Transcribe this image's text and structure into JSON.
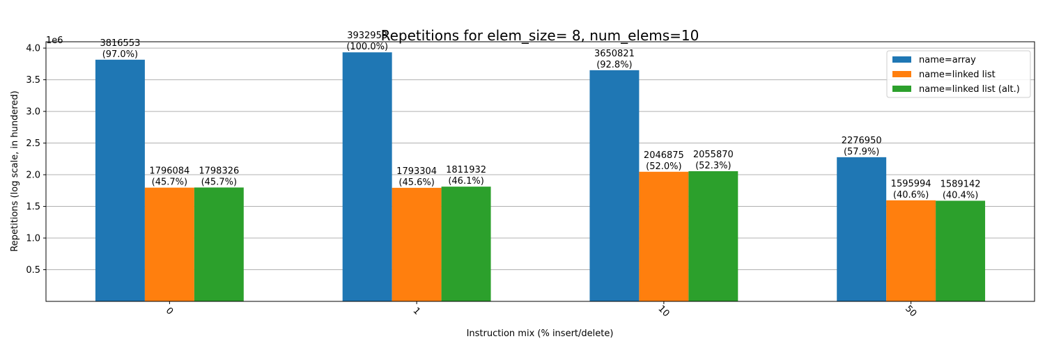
{
  "chart_data": {
    "type": "bar",
    "title": "Repetitions for elem_size= 8, num_elems=10",
    "xlabel": "Instruction mix (% insert/delete)",
    "ylabel": "Repetitions (log scale, in hundered)",
    "y_offset_text": "1e6",
    "y_scale_factor": 1000000,
    "ylim": [
      0,
      4.1
    ],
    "yticks": [
      0.5,
      1.0,
      1.5,
      2.0,
      2.5,
      3.0,
      3.5,
      4.0
    ],
    "ytick_labels": [
      "0.5",
      "1.0",
      "1.5",
      "2.0",
      "2.5",
      "3.0",
      "3.5",
      "4.0"
    ],
    "grid": "horizontal",
    "legend_position": "top-right",
    "categories": [
      "0",
      "1",
      "10",
      "50"
    ],
    "series": [
      {
        "name": "name=array",
        "color": "#1f77b4",
        "values": [
          3816553,
          3932953,
          3650821,
          2276950
        ],
        "labels": [
          "3816553\n(97.0%)",
          "3932953\n(100.0%)",
          "3650821\n(92.8%)",
          "2276950\n(57.9%)"
        ]
      },
      {
        "name": "name=linked list",
        "color": "#ff7f0e",
        "values": [
          1796084,
          1793304,
          2046875,
          1595994
        ],
        "labels": [
          "1796084\n(45.7%)",
          "1793304\n(45.6%)",
          "2046875\n(52.0%)",
          "1595994\n(40.6%)"
        ]
      },
      {
        "name": "name=linked list (alt.)",
        "color": "#2ca02c",
        "values": [
          1798326,
          1811932,
          2055870,
          1589142
        ],
        "labels": [
          "1798326\n(45.7%)",
          "1811932\n(46.1%)",
          "2055870\n(52.3%)",
          "1589142\n(40.4%)"
        ]
      }
    ]
  }
}
